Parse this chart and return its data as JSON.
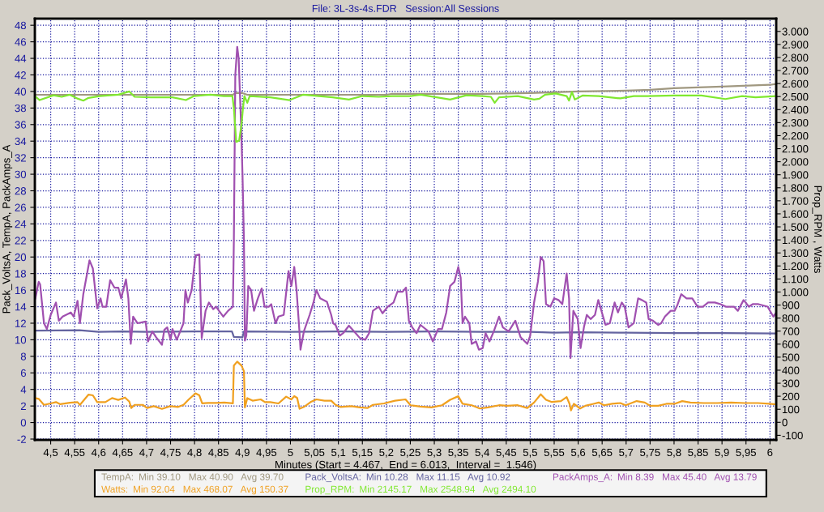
{
  "chart_data": {
    "type": "line",
    "title": "File: 3L-3s-4s.FDR   Session:All Sessions",
    "xlabel": "Minutes (Start = 4.467,  End = 6.013,  Interval =  1.546)",
    "ylabel": "Pack_VoltsA, TempA, PackAmps_A",
    "y2label": "Prop_RPM , Watts",
    "xlim": [
      4.467,
      6.013
    ],
    "xticks": [
      {
        "value": 4.5,
        "label": "4,5"
      },
      {
        "value": 4.55,
        "label": "4,55"
      },
      {
        "value": 4.6,
        "label": "4,6"
      },
      {
        "value": 4.65,
        "label": "4,65"
      },
      {
        "value": 4.7,
        "label": "4,7"
      },
      {
        "value": 4.75,
        "label": "4,75"
      },
      {
        "value": 4.8,
        "label": "4,8"
      },
      {
        "value": 4.85,
        "label": "4,85"
      },
      {
        "value": 4.9,
        "label": "4,9"
      },
      {
        "value": 4.95,
        "label": "4,95"
      },
      {
        "value": 5,
        "label": "5"
      },
      {
        "value": 5.05,
        "label": "5,05"
      },
      {
        "value": 5.1,
        "label": "5,1"
      },
      {
        "value": 5.15,
        "label": "5,15"
      },
      {
        "value": 5.2,
        "label": "5,2"
      },
      {
        "value": 5.25,
        "label": "5,25"
      },
      {
        "value": 5.3,
        "label": "5,3"
      },
      {
        "value": 5.35,
        "label": "5,35"
      },
      {
        "value": 5.4,
        "label": "5,4"
      },
      {
        "value": 5.45,
        "label": "5,45"
      },
      {
        "value": 5.5,
        "label": "5,5"
      },
      {
        "value": 5.55,
        "label": "5,55"
      },
      {
        "value": 5.6,
        "label": "5,6"
      },
      {
        "value": 5.65,
        "label": "5,65"
      },
      {
        "value": 5.7,
        "label": "5,7"
      },
      {
        "value": 5.75,
        "label": "5,75"
      },
      {
        "value": 5.8,
        "label": "5,8"
      },
      {
        "value": 5.85,
        "label": "5,85"
      },
      {
        "value": 5.9,
        "label": "5,9"
      },
      {
        "value": 5.95,
        "label": "5,95"
      },
      {
        "value": 6,
        "label": "6"
      }
    ],
    "ylim": [
      -2.1,
      48.8
    ],
    "yticks": [
      -2,
      0,
      2,
      4,
      6,
      8,
      10,
      12,
      14,
      16,
      18,
      20,
      22,
      24,
      26,
      28,
      30,
      32,
      34,
      36,
      38,
      40,
      42,
      44,
      46,
      48
    ],
    "y2lim": [
      -135,
      3098
    ],
    "y2ticks": [
      -100,
      0,
      100,
      200,
      300,
      400,
      500,
      600,
      700,
      800,
      900,
      {
        "value": 1000,
        "label": "1.000"
      },
      {
        "value": 1100,
        "label": "1.100"
      },
      {
        "value": 1200,
        "label": "1.200"
      },
      {
        "value": 1300,
        "label": "1.300"
      },
      {
        "value": 1400,
        "label": "1.400"
      },
      {
        "value": 1500,
        "label": "1.500"
      },
      {
        "value": 1600,
        "label": "1.600"
      },
      {
        "value": 1700,
        "label": "1.700"
      },
      {
        "value": 1800,
        "label": "1.800"
      },
      {
        "value": 1900,
        "label": "1.900"
      },
      {
        "value": 2000,
        "label": "2.000"
      },
      {
        "value": 2100,
        "label": "2.100"
      },
      {
        "value": 2200,
        "label": "2.200"
      },
      {
        "value": 2300,
        "label": "2.300"
      },
      {
        "value": 2400,
        "label": "2.400"
      },
      {
        "value": 2500,
        "label": "2.500"
      },
      {
        "value": 2600,
        "label": "2.600"
      },
      {
        "value": 2700,
        "label": "2.700"
      },
      {
        "value": 2800,
        "label": "2.800"
      },
      {
        "value": 2900,
        "label": "2.900"
      },
      {
        "value": 3000,
        "label": "3.000"
      }
    ],
    "grid": true,
    "legend": "bottom",
    "line_style": "solid",
    "marker": "none",
    "annotations": [
      "Min 39.10   Max 40.90   Avg 39.70",
      "Min 92.04   Max 468.07   Avg 150.37",
      "Min 10.28   Max 11.15   Avg 10.92",
      "Min 2145.17   Max 2548.94   Avg 2494.10",
      "Min 8.39   Max 45.40   Avg 13.79"
    ],
    "series": [
      {
        "name": "TempA:",
        "color": "#a09880",
        "x": [
          4.467,
          4.88,
          4.885,
          4.9,
          4.91,
          5.2,
          5.21,
          5.4,
          5.5,
          5.6,
          5.7,
          5.75,
          5.8,
          5.85,
          5.9,
          6.0,
          6.013
        ],
        "values": [
          39.6,
          39.6,
          39.8,
          39.8,
          39.6,
          39.6,
          39.7,
          39.7,
          39.8,
          40.0,
          40.1,
          40.2,
          40.4,
          40.5,
          40.6,
          40.8,
          40.9
        ]
      },
      {
        "name": "Watts:",
        "color": "#f0a020",
        "axis": "y2",
        "x": [
          4.468,
          4.475,
          4.486,
          4.5,
          4.511,
          4.52,
          4.54,
          4.556,
          4.561,
          4.579,
          4.588,
          4.597,
          4.614,
          4.628,
          4.641,
          4.655,
          4.664,
          4.668,
          4.675,
          4.692,
          4.701,
          4.715,
          4.732,
          4.749,
          4.766,
          4.777,
          4.788,
          4.802,
          4.81,
          4.816,
          4.828,
          4.845,
          4.862,
          4.88,
          4.882,
          4.889,
          4.898,
          4.903,
          4.905,
          4.91,
          4.921,
          4.938,
          4.947,
          4.958,
          4.975,
          4.991,
          5.002,
          5.008,
          5.014,
          5.019,
          5.028,
          5.042,
          5.054,
          5.071,
          5.085,
          5.094,
          5.104,
          5.127,
          5.145,
          5.161,
          5.172,
          5.195,
          5.218,
          5.24,
          5.248,
          5.25,
          5.271,
          5.294,
          5.316,
          5.333,
          5.35,
          5.359,
          5.378,
          5.395,
          5.412,
          5.435,
          5.452,
          5.474,
          5.494,
          5.508,
          5.522,
          5.533,
          5.545,
          5.564,
          5.576,
          5.582,
          5.585,
          5.591,
          5.604,
          5.615,
          5.632,
          5.643,
          5.654,
          5.671,
          5.688,
          5.699,
          5.722,
          5.739,
          5.75,
          5.767,
          5.784,
          5.801,
          5.817,
          5.834,
          5.862,
          5.89,
          5.919,
          5.947,
          5.975,
          5.998,
          6.013
        ],
        "values": [
          186,
          180,
          134,
          145,
          155,
          139,
          150,
          155,
          134,
          213,
          207,
          155,
          155,
          186,
          172,
          190,
          159,
          110,
          134,
          134,
          110,
          124,
          103,
          124,
          118,
          134,
          176,
          222,
          207,
          145,
          149,
          149,
          152,
          145,
          435,
          466,
          435,
          393,
          114,
          186,
          166,
          176,
          155,
          155,
          145,
          197,
          176,
          201,
          187,
          104,
          118,
          155,
          176,
          166,
          166,
          134,
          118,
          124,
          114,
          110,
          134,
          145,
          166,
          176,
          142,
          131,
          121,
          115,
          131,
          173,
          200,
          142,
          131,
          106,
          115,
          131,
          127,
          131,
          110,
          152,
          215,
          173,
          156,
          163,
          194,
          142,
          92,
          142,
          106,
          127,
          142,
          152,
          131,
          142,
          148,
          131,
          163,
          152,
          127,
          127,
          142,
          142,
          163,
          152,
          148,
          148,
          152,
          148,
          148,
          142,
          138
        ]
      },
      {
        "name": "Pack_VoltsA:",
        "color": "#6464a0",
        "x": [
          4.467,
          4.56,
          4.6,
          4.65,
          4.7,
          4.8,
          4.878,
          4.882,
          4.9,
          4.903,
          5.0,
          5.1,
          5.2,
          5.3,
          5.4,
          5.5,
          5.55,
          5.6,
          5.7,
          5.8,
          5.9,
          6.013
        ],
        "values": [
          11.1,
          11.15,
          10.95,
          11.0,
          10.95,
          11.0,
          11.0,
          10.35,
          10.3,
          11.0,
          10.95,
          11.0,
          10.95,
          11.0,
          10.95,
          10.95,
          10.85,
          10.9,
          10.85,
          10.8,
          10.8,
          10.75
        ]
      },
      {
        "name": "Prop_RPM:",
        "color": "#80e830",
        "axis": "y2",
        "x": [
          4.467,
          4.477,
          4.506,
          4.523,
          4.54,
          4.557,
          4.568,
          4.579,
          4.602,
          4.641,
          4.664,
          4.675,
          4.709,
          4.754,
          4.782,
          4.799,
          4.833,
          4.861,
          4.879,
          4.882,
          4.887,
          4.893,
          4.898,
          4.901,
          4.904,
          4.91,
          4.915,
          4.958,
          4.998,
          5.026,
          5.06,
          5.088,
          5.122,
          5.15,
          5.184,
          5.212,
          5.243,
          5.25,
          5.271,
          5.305,
          5.333,
          5.367,
          5.401,
          5.418,
          5.426,
          5.435,
          5.474,
          5.508,
          5.519,
          5.531,
          5.553,
          5.576,
          5.581,
          5.587,
          5.593,
          5.609,
          5.643,
          5.688,
          5.716,
          5.745,
          5.801,
          5.857,
          5.907,
          5.942,
          5.97,
          6.013
        ],
        "values": [
          2504,
          2473,
          2510,
          2498,
          2514,
          2483,
          2469,
          2490,
          2504,
          2514,
          2539,
          2498,
          2494,
          2494,
          2473,
          2504,
          2514,
          2504,
          2504,
          2411,
          2152,
          2162,
          2286,
          2411,
          2504,
          2452,
          2504,
          2494,
          2473,
          2514,
          2504,
          2494,
          2477,
          2504,
          2498,
          2504,
          2504,
          2504,
          2514,
          2494,
          2477,
          2510,
          2504,
          2498,
          2452,
          2494,
          2504,
          2477,
          2483,
          2514,
          2524,
          2504,
          2469,
          2535,
          2477,
          2508,
          2504,
          2486,
          2504,
          2504,
          2508,
          2508,
          2481,
          2504,
          2494,
          2504
        ]
      },
      {
        "name": "PackAmps_A:",
        "color": "#a050b0",
        "x": [
          4.468,
          4.475,
          4.478,
          4.486,
          4.492,
          4.5,
          4.511,
          4.517,
          4.525,
          4.542,
          4.548,
          4.556,
          4.561,
          4.568,
          4.581,
          4.588,
          4.597,
          4.604,
          4.608,
          4.616,
          4.624,
          4.633,
          4.641,
          4.647,
          4.657,
          4.662,
          4.667,
          4.672,
          4.681,
          4.698,
          4.703,
          4.712,
          4.72,
          4.732,
          4.737,
          4.743,
          4.75,
          4.754,
          4.763,
          4.777,
          4.781,
          4.786,
          4.794,
          4.802,
          4.81,
          4.815,
          4.823,
          4.83,
          4.839,
          4.845,
          4.851,
          4.86,
          4.87,
          4.88,
          4.882,
          4.885,
          4.889,
          4.892,
          4.897,
          4.9,
          4.903,
          4.905,
          4.908,
          4.912,
          4.918,
          4.924,
          4.932,
          4.94,
          4.946,
          4.955,
          4.96,
          4.969,
          4.975,
          4.986,
          4.996,
          5.002,
          5.008,
          5.013,
          5.019,
          5.021,
          5.028,
          5.04,
          5.048,
          5.054,
          5.062,
          5.076,
          5.085,
          5.089,
          5.094,
          5.103,
          5.11,
          5.122,
          5.133,
          5.145,
          5.156,
          5.164,
          5.172,
          5.184,
          5.192,
          5.203,
          5.215,
          5.223,
          5.234,
          5.241,
          5.247,
          5.254,
          5.263,
          5.271,
          5.288,
          5.297,
          5.308,
          5.316,
          5.325,
          5.333,
          5.342,
          5.35,
          5.355,
          5.359,
          5.364,
          5.373,
          5.378,
          5.387,
          5.393,
          5.401,
          5.407,
          5.415,
          5.424,
          5.435,
          5.443,
          5.455,
          5.469,
          5.48,
          5.494,
          5.5,
          5.508,
          5.516,
          5.522,
          5.528,
          5.533,
          5.542,
          5.55,
          5.559,
          5.567,
          5.576,
          5.581,
          5.584,
          5.59,
          5.599,
          5.605,
          5.612,
          5.618,
          5.626,
          5.635,
          5.642,
          5.652,
          5.657,
          5.666,
          5.676,
          5.683,
          5.691,
          5.697,
          5.705,
          5.716,
          5.725,
          5.733,
          5.742,
          5.747,
          5.756,
          5.767,
          5.773,
          5.781,
          5.793,
          5.801,
          5.807,
          5.815,
          5.826,
          5.838,
          5.849,
          5.86,
          5.871,
          5.885,
          5.897,
          5.908,
          5.925,
          5.933,
          5.945,
          5.956,
          5.964,
          5.976,
          5.995,
          6.007,
          6.013
        ],
        "values": [
          15,
          17,
          16.7,
          12,
          11.3,
          13,
          14.5,
          12.3,
          12.8,
          13.3,
          12.8,
          14.7,
          12,
          15.5,
          19.6,
          18.6,
          13.8,
          15,
          14,
          14,
          17.2,
          16.3,
          16.3,
          15,
          17.3,
          15,
          9.5,
          12.8,
          12,
          12.2,
          9.8,
          11,
          10.3,
          9.4,
          11.2,
          11.5,
          10,
          11.3,
          10,
          12,
          16,
          14.5,
          16,
          20.2,
          20.3,
          10.2,
          13.5,
          14.5,
          13.7,
          14,
          13.5,
          12.8,
          13.5,
          14,
          22,
          42,
          45.4,
          44,
          36,
          30,
          22,
          9.9,
          10.5,
          16.5,
          16,
          13.5,
          15,
          16.2,
          14,
          14,
          14.3,
          12,
          12.8,
          13,
          18.3,
          16.5,
          18.8,
          15.8,
          10.8,
          8.8,
          11,
          13,
          14.5,
          16,
          15,
          14.6,
          13,
          12,
          11.8,
          10.5,
          10.8,
          11.7,
          11,
          10.2,
          10,
          10.8,
          13.5,
          14,
          13.2,
          14,
          14.5,
          15.8,
          15.8,
          16.3,
          12.3,
          11.5,
          10.8,
          11.8,
          11,
          9.8,
          11.3,
          11.3,
          13.3,
          16.5,
          17,
          18.8,
          17.5,
          12,
          12.8,
          12,
          9.5,
          9.8,
          8.8,
          9,
          10.8,
          9.8,
          11,
          12.8,
          11.5,
          11,
          12.3,
          10.3,
          9.5,
          10.5,
          14.5,
          17,
          20,
          19.5,
          14.3,
          14,
          15,
          14.8,
          14.3,
          18,
          15,
          7.8,
          13.5,
          12.5,
          9,
          11.5,
          13,
          12.5,
          13,
          14.8,
          12.8,
          11.8,
          12,
          14.5,
          13.3,
          14.5,
          14,
          11.5,
          12,
          15,
          14.8,
          14.5,
          12.5,
          12.3,
          11.8,
          12,
          12.8,
          13.5,
          13.5,
          14.2,
          15.5,
          15,
          15,
          14,
          14,
          14.5,
          14.5,
          14.3,
          14,
          14,
          13.5,
          14.8,
          14,
          14.3,
          14.3,
          14,
          12.8,
          13.3
        ]
      }
    ]
  }
}
